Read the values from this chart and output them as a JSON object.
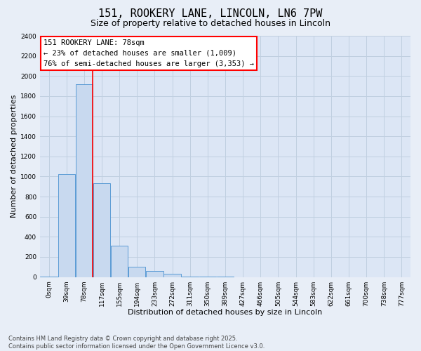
{
  "title": "151, ROOKERY LANE, LINCOLN, LN6 7PW",
  "subtitle": "Size of property relative to detached houses in Lincoln",
  "xlabel": "Distribution of detached houses by size in Lincoln",
  "ylabel": "Number of detached properties",
  "bin_labels": [
    "0sqm",
    "39sqm",
    "78sqm",
    "117sqm",
    "155sqm",
    "194sqm",
    "233sqm",
    "272sqm",
    "311sqm",
    "350sqm",
    "389sqm",
    "427sqm",
    "466sqm",
    "505sqm",
    "544sqm",
    "583sqm",
    "622sqm",
    "661sqm",
    "700sqm",
    "738sqm",
    "777sqm"
  ],
  "bar_heights": [
    2,
    1025,
    1920,
    930,
    310,
    105,
    60,
    30,
    5,
    2,
    1,
    0,
    0,
    0,
    0,
    0,
    0,
    0,
    0,
    0,
    0
  ],
  "bar_color": "#c8d9ef",
  "bar_edge_color": "#5b9bd5",
  "red_line_index": 2,
  "ylim": [
    0,
    2400
  ],
  "yticks": [
    0,
    200,
    400,
    600,
    800,
    1000,
    1200,
    1400,
    1600,
    1800,
    2000,
    2200,
    2400
  ],
  "annotation_title": "151 ROOKERY LANE: 78sqm",
  "annotation_line1": "← 23% of detached houses are smaller (1,009)",
  "annotation_line2": "76% of semi-detached houses are larger (3,353) →",
  "footer_line1": "Contains HM Land Registry data © Crown copyright and database right 2025.",
  "footer_line2": "Contains public sector information licensed under the Open Government Licence v3.0.",
  "background_color": "#e8eef7",
  "plot_bg_color": "#dce6f5",
  "grid_color": "#c0cfe0",
  "title_fontsize": 11,
  "subtitle_fontsize": 9,
  "axis_label_fontsize": 8,
  "tick_fontsize": 6.5,
  "annotation_fontsize": 7.5,
  "footer_fontsize": 6
}
